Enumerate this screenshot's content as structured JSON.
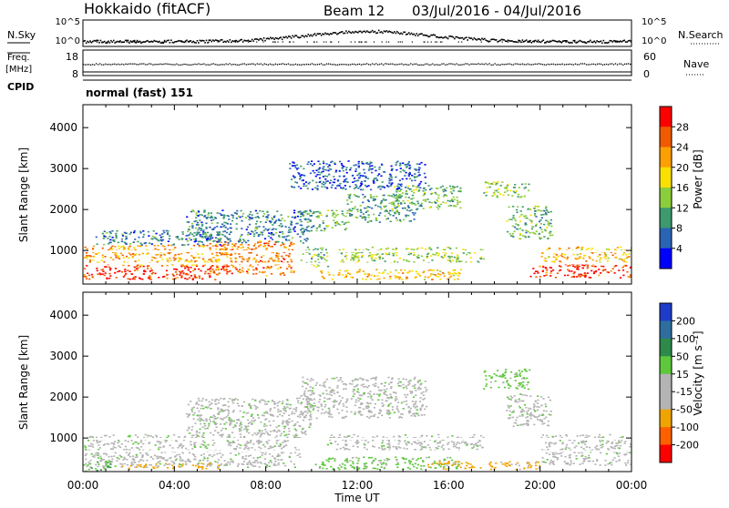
{
  "header": {
    "station": "Hokkaido (fitACF)",
    "beam": "Beam 12",
    "dates": "03/Jul/2016 - 04/Jul/2016"
  },
  "summary_panels": {
    "nsky": {
      "label": "N.Sky",
      "ticks": [
        "10^5",
        "10^0"
      ]
    },
    "nsearch": {
      "label": "N.Search",
      "ticks": [
        "10^5",
        "10^0"
      ]
    },
    "freq": {
      "label_lines": [
        "Freq.",
        "[MHz]"
      ],
      "ticks": [
        "18",
        "8"
      ]
    },
    "nave": {
      "label": "Nave",
      "ticks": [
        "60",
        "0"
      ]
    },
    "cpid": {
      "label": "CPID",
      "value": "normal (fast) 151"
    }
  },
  "chart_data": [
    {
      "type": "heatmap",
      "name": "power",
      "xlabel": "Time UT",
      "ylabel": "Slant Range [km]",
      "x_ticks": [
        "00:00",
        "04:00",
        "08:00",
        "12:00",
        "16:00",
        "20:00",
        "00:00"
      ],
      "x_range_hours": [
        0,
        24
      ],
      "ylim": [
        180,
        4560
      ],
      "y_ticks": [
        1000,
        2000,
        3000,
        4000
      ],
      "colorbar": {
        "label": "Power [dB]",
        "ticks": [
          "28",
          "24",
          "20",
          "16",
          "12",
          "8",
          "4"
        ],
        "colors": [
          "#ff0000",
          "#f05a00",
          "#fba000",
          "#f8e000",
          "#8ccd3c",
          "#3c9a6e",
          "#2a64b4",
          "#0000ff"
        ]
      },
      "regions": [
        {
          "t": [
            0,
            6.3
          ],
          "r": [
            300,
            650
          ],
          "level": 28
        },
        {
          "t": [
            0,
            6.5
          ],
          "r": [
            650,
            1150
          ],
          "level": 22
        },
        {
          "t": [
            0.5,
            6
          ],
          "r": [
            1150,
            1500
          ],
          "level": 8
        },
        {
          "t": [
            5.5,
            9.2
          ],
          "r": [
            400,
            1250
          ],
          "level": 24
        },
        {
          "t": [
            4.5,
            10
          ],
          "r": [
            1200,
            2000
          ],
          "level": 8
        },
        {
          "t": [
            9.5,
            10.7
          ],
          "r": [
            600,
            1100
          ],
          "level": 12
        },
        {
          "t": [
            10.2,
            16.5
          ],
          "r": [
            300,
            550
          ],
          "level": 20
        },
        {
          "t": [
            11,
            17.5
          ],
          "r": [
            700,
            1100
          ],
          "level": 14
        },
        {
          "t": [
            9.5,
            11.5
          ],
          "r": [
            1500,
            2000
          ],
          "level": 12
        },
        {
          "t": [
            11.5,
            14.5
          ],
          "r": [
            1700,
            2400
          ],
          "level": 10
        },
        {
          "t": [
            13.5,
            16.5
          ],
          "r": [
            2000,
            2600
          ],
          "level": 12
        },
        {
          "t": [
            9,
            15
          ],
          "r": [
            2500,
            3200
          ],
          "level": 6
        },
        {
          "t": [
            17.5,
            19.5
          ],
          "r": [
            2300,
            2700
          ],
          "level": 14
        },
        {
          "t": [
            18.5,
            20.5
          ],
          "r": [
            1300,
            2100
          ],
          "level": 12
        },
        {
          "t": [
            19.5,
            24
          ],
          "r": [
            350,
            700
          ],
          "level": 28
        },
        {
          "t": [
            20,
            24
          ],
          "r": [
            700,
            1100
          ],
          "level": 20
        }
      ]
    },
    {
      "type": "heatmap",
      "name": "velocity",
      "xlabel": "Time UT",
      "ylabel": "Slant Range [km]",
      "x_ticks": [
        "00:00",
        "04:00",
        "08:00",
        "12:00",
        "16:00",
        "20:00",
        "00:00"
      ],
      "x_range_hours": [
        0,
        24
      ],
      "ylim": [
        180,
        4560
      ],
      "y_ticks": [
        1000,
        2000,
        3000,
        4000
      ],
      "colorbar": {
        "label": "Velocity [m s⁻¹]",
        "ticks": [
          "200",
          "100",
          "50",
          "15",
          "-15",
          "-50",
          "-100",
          "-200"
        ],
        "colors": [
          "#1e3cc8",
          "#2e6e9e",
          "#2e8a4a",
          "#5ec83c",
          "#b4b4b4",
          "#b4b4b4",
          "#f0a400",
          "#ff6000",
          "#ff0000"
        ]
      },
      "regions": [
        {
          "t": [
            0,
            9.5
          ],
          "r": [
            300,
            1100
          ],
          "level": 0
        },
        {
          "t": [
            0,
            1.2
          ],
          "r": [
            200,
            450
          ],
          "level": 40
        },
        {
          "t": [
            1.5,
            6
          ],
          "r": [
            250,
            400
          ],
          "level": -60
        },
        {
          "t": [
            4.5,
            10
          ],
          "r": [
            1100,
            2000
          ],
          "level": 0
        },
        {
          "t": [
            10,
            16.5
          ],
          "r": [
            250,
            550
          ],
          "level": 30
        },
        {
          "t": [
            10.5,
            17.5
          ],
          "r": [
            700,
            1100
          ],
          "level": 0
        },
        {
          "t": [
            9.5,
            15
          ],
          "r": [
            1500,
            2500
          ],
          "level": 0
        },
        {
          "t": [
            17.5,
            19.5
          ],
          "r": [
            2200,
            2700
          ],
          "level": 30
        },
        {
          "t": [
            18.5,
            20.5
          ],
          "r": [
            1300,
            2100
          ],
          "level": 0
        },
        {
          "t": [
            15,
            20
          ],
          "r": [
            250,
            450
          ],
          "level": -60
        },
        {
          "t": [
            20,
            24
          ],
          "r": [
            350,
            1100
          ],
          "level": 0
        }
      ]
    }
  ]
}
